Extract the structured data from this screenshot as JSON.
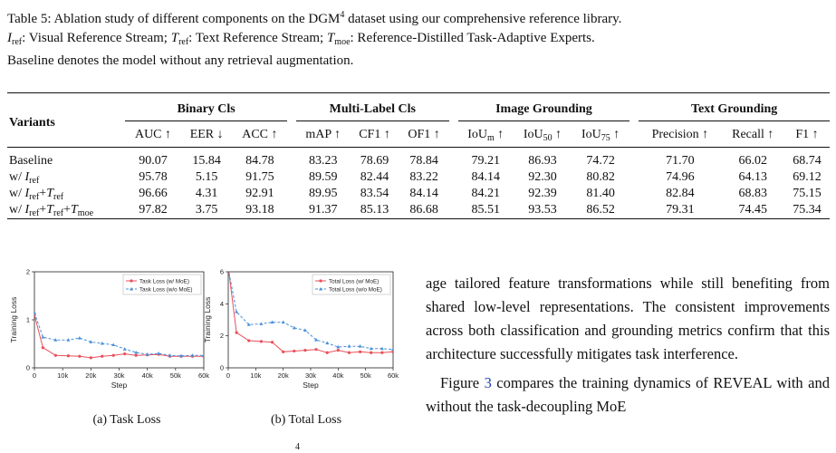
{
  "caption": {
    "label": "Table 5:",
    "text1": "Ablation study of different components on the DGM",
    "text1_sup": "4",
    "text2": "dataset using our comprehensive reference library.",
    "defs": [
      {
        "sym": "I",
        "sub": "ref",
        "desc": ": Visual Reference Stream; "
      },
      {
        "sym": "T",
        "sub": "ref",
        "desc": ": Text Reference Stream; "
      },
      {
        "sym": "T",
        "sub": "moe",
        "desc": ": Reference-Distilled Task-Adaptive Experts."
      }
    ],
    "text3": "Baseline denotes the model without any retrieval augmentation."
  },
  "table": {
    "variants_header": "Variants",
    "groups": [
      "Binary Cls",
      "Multi-Label Cls",
      "Image Grounding",
      "Text Grounding"
    ],
    "metrics": {
      "auc": "AUC ↑",
      "eer": "EER ↓",
      "acc": "ACC ↑",
      "map": "mAP ↑",
      "cf1": "CF1 ↑",
      "of1": "OF1 ↑",
      "ioum": "IoU",
      "ioum_sub": "m",
      "iou50": "IoU",
      "iou50_sub": "50",
      "iou75": "IoU",
      "iou75_sub": "75",
      "arrow": " ↑",
      "precision": "Precision ↑",
      "recall": "Recall ↑",
      "f1": "F1 ↑"
    },
    "rows": [
      {
        "name_prefix": "Baseline",
        "values": [
          "90.07",
          "15.84",
          "84.78",
          "83.23",
          "78.69",
          "78.84",
          "79.21",
          "86.93",
          "74.72",
          "71.70",
          "66.02",
          "68.74"
        ]
      },
      {
        "name_prefix": "w/",
        "values": [
          "95.78",
          "5.15",
          "91.75",
          "89.59",
          "82.44",
          "83.22",
          "84.14",
          "92.30",
          "80.82",
          "74.96",
          "64.13",
          "69.12"
        ]
      },
      {
        "name_prefix": "w/",
        "values": [
          "96.66",
          "4.31",
          "92.91",
          "89.95",
          "83.54",
          "84.14",
          "84.21",
          "92.39",
          "81.40",
          "82.84",
          "68.83",
          "75.15"
        ]
      },
      {
        "name_prefix": "w/",
        "values": [
          "97.82",
          "3.75",
          "93.18",
          "91.37",
          "85.13",
          "86.68",
          "85.51",
          "93.53",
          "86.52",
          "79.31",
          "74.45",
          "75.34"
        ]
      }
    ]
  },
  "figures": {
    "task": {
      "ylabel": "Training Loss",
      "xlabel": "Step",
      "subcaption": "(a) Task Loss",
      "legend": [
        "Task Loss (w/ MoE)",
        "Task Loss (w/o MoE)"
      ]
    },
    "total": {
      "ylabel": "Training Loss",
      "xlabel": "Step",
      "subcaption": "(b) Total Loss",
      "legend": [
        "Total Loss (w/ MoE)",
        "Total Loss (w/o MoE)"
      ]
    }
  },
  "chart_data": [
    {
      "type": "line",
      "xlabel": "Step",
      "ylabel": "Training Loss",
      "xlim": [
        0,
        60000
      ],
      "ylim": [
        0,
        2
      ],
      "xticks": [
        0,
        10000,
        20000,
        30000,
        40000,
        50000,
        60000
      ],
      "xtick_labels": [
        "0",
        "10k",
        "20k",
        "30k",
        "40k",
        "50k",
        "60k"
      ],
      "yticks": [
        0,
        1,
        2
      ],
      "ytick_labels": [
        "0",
        "1",
        "2"
      ],
      "legend_position": "top-right",
      "grid": false,
      "series": [
        {
          "name": "Task Loss (w/ MoE)",
          "color": "#e8505b",
          "marker": "circle",
          "x": [
            0,
            3000,
            7500,
            12000,
            16000,
            20000,
            24000,
            28000,
            32000,
            36000,
            40000,
            44000,
            48000,
            52000,
            56000,
            60000
          ],
          "y": [
            1.1,
            0.42,
            0.26,
            0.25,
            0.24,
            0.21,
            0.24,
            0.26,
            0.29,
            0.26,
            0.27,
            0.28,
            0.24,
            0.24,
            0.24,
            0.24
          ]
        },
        {
          "name": "Task Loss (w/o MoE)",
          "color": "#4a90d9",
          "marker": "triangle",
          "x": [
            0,
            3000,
            7500,
            12000,
            16000,
            20000,
            24000,
            28000,
            32000,
            36000,
            40000,
            44000,
            48000,
            52000,
            56000,
            60000
          ],
          "y": [
            1.15,
            0.64,
            0.58,
            0.58,
            0.62,
            0.54,
            0.51,
            0.48,
            0.39,
            0.32,
            0.28,
            0.3,
            0.26,
            0.25,
            0.26,
            0.26
          ]
        }
      ]
    },
    {
      "type": "line",
      "xlabel": "Step",
      "ylabel": "Training Loss",
      "xlim": [
        0,
        60000
      ],
      "ylim": [
        0,
        6
      ],
      "xticks": [
        0,
        10000,
        20000,
        30000,
        40000,
        50000,
        60000
      ],
      "xtick_labels": [
        "0",
        "10k",
        "20k",
        "30k",
        "40k",
        "50k",
        "60k"
      ],
      "yticks": [
        0,
        2,
        4,
        6
      ],
      "ytick_labels": [
        "0",
        "2",
        "4",
        "6"
      ],
      "legend_position": "top-right",
      "grid": false,
      "series": [
        {
          "name": "Total Loss (w/ MoE)",
          "color": "#e8505b",
          "marker": "circle",
          "x": [
            0,
            3000,
            7500,
            12000,
            16000,
            20000,
            24000,
            28000,
            32000,
            36000,
            40000,
            44000,
            48000,
            52000,
            56000,
            60000
          ],
          "y": [
            6.3,
            2.2,
            1.7,
            1.65,
            1.6,
            1.0,
            1.05,
            1.1,
            1.15,
            0.95,
            1.1,
            0.95,
            1.0,
            0.95,
            0.95,
            1.0
          ]
        },
        {
          "name": "Total Loss (w/o MoE)",
          "color": "#4a90d9",
          "marker": "triangle",
          "x": [
            0,
            3000,
            7500,
            12000,
            16000,
            20000,
            24000,
            28000,
            32000,
            36000,
            40000,
            44000,
            48000,
            52000,
            56000,
            60000
          ],
          "y": [
            6.2,
            3.5,
            2.7,
            2.75,
            2.85,
            2.85,
            2.5,
            2.35,
            1.75,
            1.55,
            1.3,
            1.35,
            1.35,
            1.2,
            1.2,
            1.15
          ]
        }
      ]
    }
  ],
  "body": {
    "p1": "age tailored feature transformations while still benefiting from shared low-level representations. The consistent improvements across both classification and grounding metrics confirm that this architecture successfully mitigates task interference.",
    "p2_before": "Figure ",
    "p2_link": "3",
    "p2_after": " compares the training dynamics of REVEAL with and without the task-decoupling MoE",
    "cut_sup": "4"
  }
}
